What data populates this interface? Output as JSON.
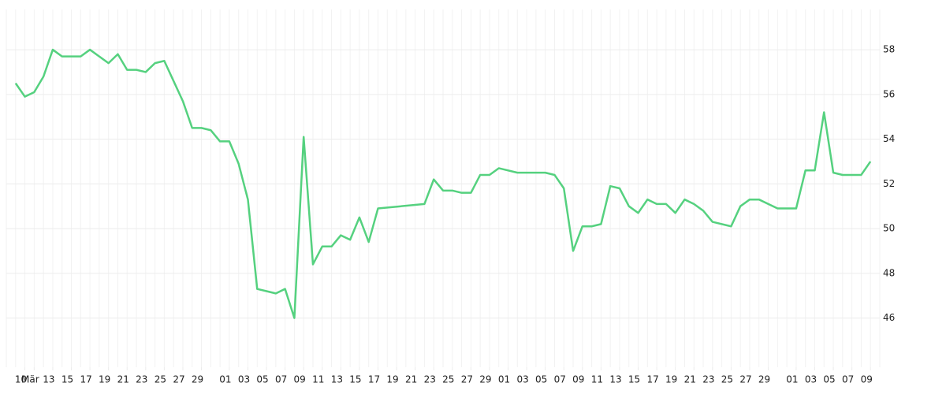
{
  "chart_data": {
    "type": "line",
    "x": [
      "03-09",
      "03-10",
      "03-11",
      "03-12",
      "03-13",
      "03-14",
      "03-15",
      "03-16",
      "03-17",
      "03-18",
      "03-19",
      "03-20",
      "03-21",
      "03-22",
      "03-23",
      "03-24",
      "03-25",
      "03-26",
      "03-27",
      "03-28",
      "03-29",
      "03-30",
      "03-31",
      "04-01",
      "04-02",
      "04-03",
      "04-04",
      "04-05",
      "04-06",
      "04-07",
      "04-08",
      "04-09",
      "04-10",
      "04-11",
      "04-12",
      "04-13",
      "04-14",
      "04-15",
      "04-16",
      "04-17",
      "04-22",
      "04-23",
      "04-24",
      "04-25",
      "04-26",
      "04-27",
      "04-28",
      "04-29",
      "04-30",
      "05-02",
      "05-05",
      "05-06",
      "05-07",
      "05-08",
      "05-09",
      "05-10",
      "05-11",
      "05-12",
      "05-13",
      "05-14",
      "05-15",
      "05-16",
      "05-17",
      "05-18",
      "05-19",
      "05-20",
      "05-21",
      "05-22",
      "05-23",
      "05-25",
      "05-26",
      "05-27",
      "05-28",
      "05-30",
      "06-01",
      "06-02",
      "06-03",
      "06-04",
      "06-05",
      "06-06",
      "06-08",
      "06-09"
    ],
    "series": [
      {
        "color": "#55d17f",
        "values": [
          56.5,
          55.9,
          56.1,
          56.8,
          58.0,
          57.7,
          57.7,
          57.7,
          58.0,
          57.7,
          57.4,
          57.8,
          57.1,
          57.1,
          57.0,
          57.4,
          57.5,
          56.6,
          55.7,
          54.5,
          54.5,
          54.4,
          53.9,
          53.9,
          52.9,
          51.3,
          47.3,
          47.2,
          47.1,
          47.3,
          46.0,
          54.1,
          48.4,
          49.2,
          49.2,
          49.7,
          49.5,
          50.5,
          49.4,
          50.9,
          51.1,
          52.2,
          51.7,
          51.7,
          51.6,
          51.6,
          52.4,
          52.4,
          52.7,
          52.5,
          52.5,
          52.4,
          51.8,
          49.0,
          50.1,
          50.1,
          50.2,
          51.9,
          51.8,
          51.0,
          50.7,
          51.3,
          51.1,
          51.1,
          50.7,
          51.3,
          51.1,
          50.8,
          50.3,
          50.1,
          51.0,
          51.3,
          51.3,
          50.9,
          50.9,
          52.6,
          52.6,
          55.2,
          52.5,
          52.4,
          52.4,
          53.0
        ]
      }
    ],
    "xlim": [
      "03-08",
      "06-10"
    ],
    "xticks": [
      {
        "value": "03-10",
        "label": "10"
      },
      {
        "value": "03-11",
        "label": "Mär"
      },
      {
        "value": "03-13",
        "label": "13"
      },
      {
        "value": "03-15",
        "label": "15"
      },
      {
        "value": "03-17",
        "label": "17"
      },
      {
        "value": "03-19",
        "label": "19"
      },
      {
        "value": "03-21",
        "label": "21"
      },
      {
        "value": "03-23",
        "label": "23"
      },
      {
        "value": "03-25",
        "label": "25"
      },
      {
        "value": "03-27",
        "label": "27"
      },
      {
        "value": "03-29",
        "label": "29"
      },
      {
        "value": "04-01",
        "label": "01"
      },
      {
        "value": "04-03",
        "label": "03"
      },
      {
        "value": "04-05",
        "label": "05"
      },
      {
        "value": "04-07",
        "label": "07"
      },
      {
        "value": "04-09",
        "label": "09"
      },
      {
        "value": "04-11",
        "label": "11"
      },
      {
        "value": "04-13",
        "label": "13"
      },
      {
        "value": "04-15",
        "label": "15"
      },
      {
        "value": "04-17",
        "label": "17"
      },
      {
        "value": "04-19",
        "label": "19"
      },
      {
        "value": "04-21",
        "label": "21"
      },
      {
        "value": "04-23",
        "label": "23"
      },
      {
        "value": "04-25",
        "label": "25"
      },
      {
        "value": "04-27",
        "label": "27"
      },
      {
        "value": "04-29",
        "label": "29"
      },
      {
        "value": "05-01",
        "label": "01"
      },
      {
        "value": "05-03",
        "label": "03"
      },
      {
        "value": "05-05",
        "label": "05"
      },
      {
        "value": "05-07",
        "label": "07"
      },
      {
        "value": "05-09",
        "label": "09"
      },
      {
        "value": "05-11",
        "label": "11"
      },
      {
        "value": "05-13",
        "label": "13"
      },
      {
        "value": "05-15",
        "label": "15"
      },
      {
        "value": "05-17",
        "label": "17"
      },
      {
        "value": "05-19",
        "label": "19"
      },
      {
        "value": "05-21",
        "label": "21"
      },
      {
        "value": "05-23",
        "label": "23"
      },
      {
        "value": "05-25",
        "label": "25"
      },
      {
        "value": "05-27",
        "label": "27"
      },
      {
        "value": "05-29",
        "label": "29"
      },
      {
        "value": "06-01",
        "label": "01"
      },
      {
        "value": "06-03",
        "label": "03"
      },
      {
        "value": "06-05",
        "label": "05"
      },
      {
        "value": "06-07",
        "label": "07"
      },
      {
        "value": "06-09",
        "label": "09"
      }
    ],
    "ylim": [
      43.8,
      59.8
    ],
    "yticks": [
      46,
      48,
      50,
      52,
      54,
      56,
      58
    ],
    "grid": true
  }
}
